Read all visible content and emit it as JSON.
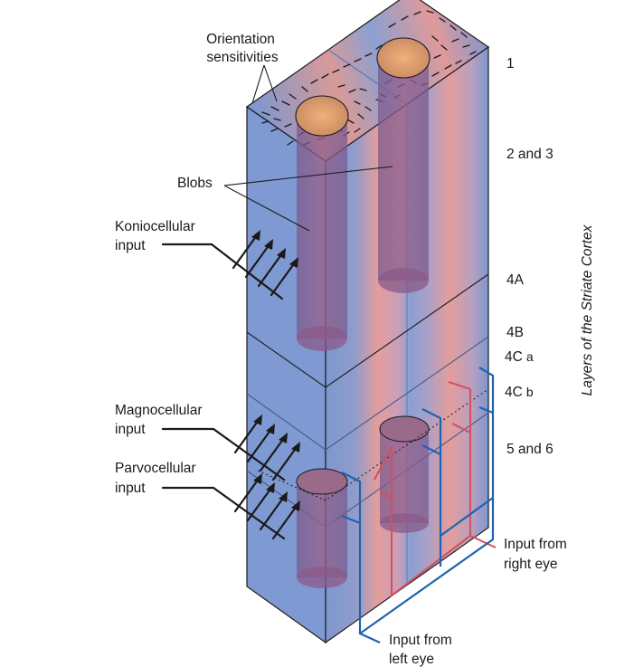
{
  "labels": {
    "orientation": [
      "Orientation",
      "sensitivities"
    ],
    "blobs": "Blobs",
    "koniocellular": [
      "Koniocellular",
      "input"
    ],
    "magnocellular": [
      "Magnocellular",
      "input"
    ],
    "parvocellular": [
      "Parvocellular",
      "input"
    ],
    "right_eye": [
      "Input from",
      "right eye"
    ],
    "left_eye": [
      "Input from",
      "left eye"
    ]
  },
  "layers": {
    "l1": "1",
    "l23": "2 and 3",
    "l4a": "4A",
    "l4b": "4B",
    "l4ca_main": "4C",
    "l4ca_sub": "a",
    "l4cb_main": "4C",
    "l4cb_sub": "b",
    "l56": "5 and 6"
  },
  "side_title": "Layers of the Striate Cortex",
  "colors": {
    "cortex_blue": "#7d97d0",
    "cortex_pink": "#e49d9c",
    "blob_purple": "#8c5a86",
    "blob_top": "#e0a070",
    "left_eye_line": "#1f63b0",
    "right_eye_line": "#d1505c"
  }
}
